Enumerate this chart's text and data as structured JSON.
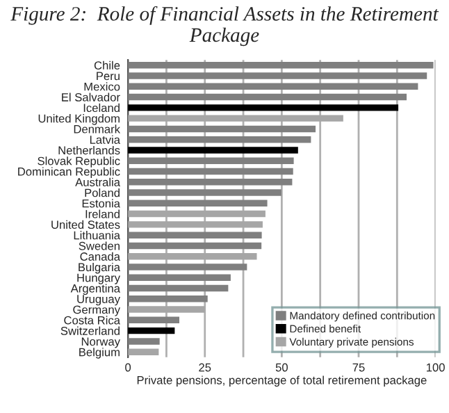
{
  "chart_data": {
    "type": "bar",
    "orientation": "horizontal",
    "title": "Figure 2:  Role of Financial Assets in the Retirement Package",
    "xlabel": "Private pensions, percentage of total retirement package",
    "categories": [
      "Chile",
      "Peru",
      "Mexico",
      "El Salvador",
      "Iceland",
      "United Kingdom",
      "Denmark",
      "Latvia",
      "Netherlands",
      "Slovak Republic",
      "Dominican Republic",
      "Australia",
      "Poland",
      "Estonia",
      "Ireland",
      "United States",
      "Lithuania",
      "Sweden",
      "Canada",
      "Bulgaria",
      "Hungary",
      "Argentina",
      "Uruguay",
      "Germany",
      "Costa Rica",
      "Switzerland",
      "Norway",
      "Belgium"
    ],
    "series": [
      {
        "name": "Mandatory defined contribution",
        "color": "#7f7f7f",
        "values": [
          99.3,
          97.2,
          94.3,
          90.6,
          null,
          null,
          61.0,
          59.5,
          null,
          53.9,
          53.7,
          53.4,
          49.9,
          45.3,
          null,
          null,
          43.5,
          43.4,
          null,
          38.7,
          33.4,
          32.6,
          25.9,
          null,
          16.7,
          null,
          10.3,
          null
        ]
      },
      {
        "name": "Defined benefit",
        "color": "#000000",
        "values": [
          null,
          null,
          null,
          null,
          87.9,
          null,
          null,
          null,
          55.3,
          null,
          null,
          null,
          null,
          null,
          null,
          null,
          null,
          null,
          null,
          null,
          null,
          null,
          null,
          null,
          null,
          15.2,
          null,
          null
        ]
      },
      {
        "name": "Voluntary private pensions",
        "color": "#a6a6a6",
        "values": [
          null,
          null,
          null,
          null,
          null,
          70.0,
          null,
          null,
          null,
          null,
          null,
          null,
          null,
          null,
          44.7,
          43.8,
          null,
          null,
          41.9,
          null,
          null,
          null,
          null,
          25.0,
          null,
          null,
          null,
          10.0
        ]
      }
    ],
    "xlim": [
      0,
      100
    ],
    "xticks": [
      0,
      {
        "value": 12.5,
        "label": null
      },
      25,
      {
        "value": 37.5,
        "label": null
      },
      50,
      {
        "value": 62.5,
        "label": null
      },
      75,
      {
        "value": 87.5,
        "label": null
      },
      100
    ],
    "grid": "x",
    "legend": "bottom right"
  }
}
